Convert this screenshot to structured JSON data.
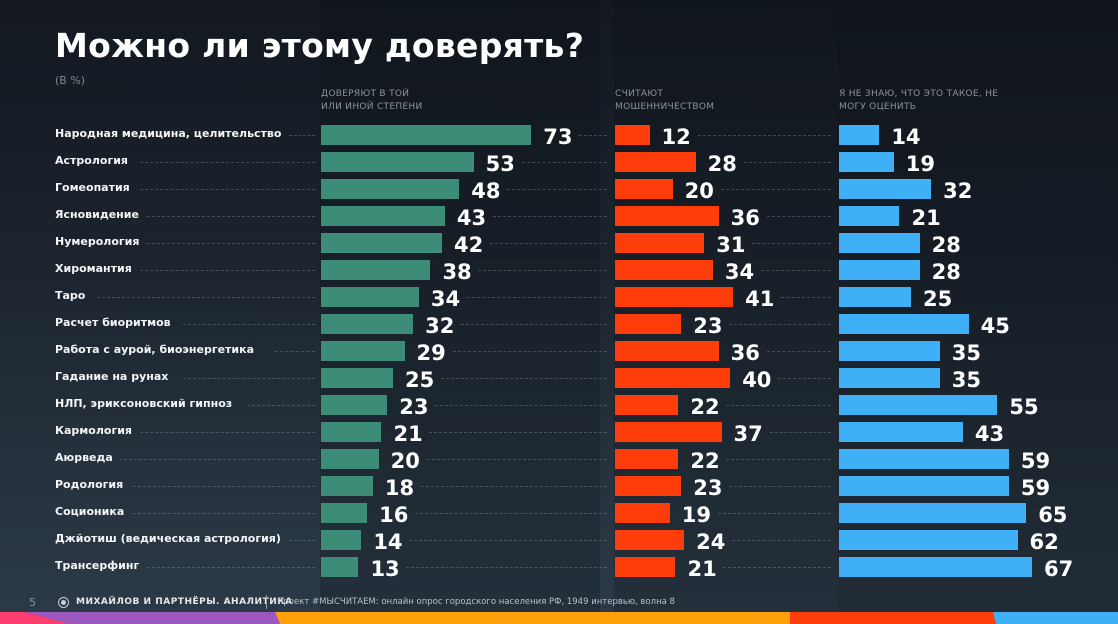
{
  "header": {
    "title": "Можно ли этому доверять?",
    "subtitle": "(В %)"
  },
  "footer": {
    "page_number": "5",
    "logo_icon": "lion-emblem-icon",
    "brand": "МИХАЙЛОВ И ПАРТНЁРЫ. АНАЛИТИКА",
    "project": "Проект #МЫСЧИТАЕМ: онлайн опрос городского населения РФ, 1949 интервью, волна 8"
  },
  "colors": {
    "trust": "#3d8c78",
    "fraud": "#ff3d0a",
    "unknown": "#3fb0f5",
    "stripe": [
      "#ff3d6e",
      "#9b59c0",
      "#ff9f0a",
      "#ff3d0a",
      "#3fb0f5"
    ]
  },
  "chart_data": {
    "type": "bar",
    "orientation": "horizontal",
    "title": "Можно ли этому доверять?",
    "subtitle": "(В %)",
    "unit": "%",
    "categories": [
      "Народная медицина, целительство",
      "Астрология",
      "Гомеопатия",
      "Ясновидение",
      "Нумерология",
      "Хиромантия",
      "Таро",
      "Расчет биоритмов",
      "Работа с аурой, биоэнергетика",
      "Гадание на рунах",
      "НЛП, эриксоновский гипноз",
      "Кармология",
      "Аюрведа",
      "Родология",
      "Соционика",
      "Джйотиш (ведическая астрология)",
      "Трансерфинг"
    ],
    "series": [
      {
        "name": "Доверяют в той или иной степени",
        "color": "#3d8c78",
        "values": [
          73,
          53,
          48,
          43,
          42,
          38,
          34,
          32,
          29,
          25,
          23,
          21,
          20,
          18,
          16,
          14,
          13
        ]
      },
      {
        "name": "Считают мошенничеством",
        "color": "#ff3d0a",
        "values": [
          12,
          28,
          20,
          36,
          31,
          34,
          41,
          23,
          36,
          40,
          22,
          37,
          22,
          23,
          19,
          24,
          21
        ]
      },
      {
        "name": "Я не знаю, что это такое, не могу оценить",
        "color": "#3fb0f5",
        "values": [
          14,
          19,
          32,
          21,
          28,
          28,
          25,
          45,
          35,
          35,
          55,
          43,
          59,
          59,
          65,
          62,
          67
        ]
      }
    ],
    "column_headers": [
      "Доверяют в той или иной степени",
      "Считают мошенничеством",
      "Я не знаю, что это такое, не могу оценить"
    ],
    "grid": false,
    "legend": "column-headers-top"
  }
}
